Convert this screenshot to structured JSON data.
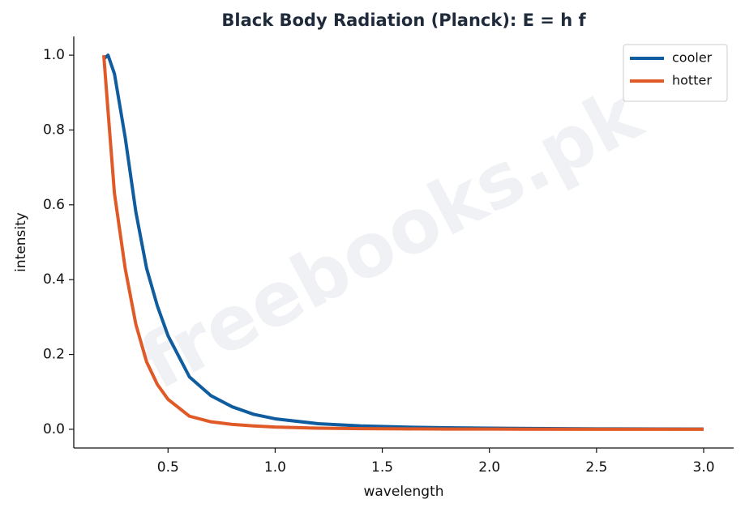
{
  "chart_data": {
    "type": "line",
    "title": "Black Body Radiation (Planck):  E = h f",
    "x_label": "wavelength",
    "y_label": "intensity",
    "watermark": "freebooks.pk",
    "x": [
      0.2,
      0.22,
      0.25,
      0.3,
      0.35,
      0.4,
      0.45,
      0.5,
      0.6,
      0.7,
      0.8,
      0.9,
      1.0,
      1.2,
      1.4,
      1.6,
      1.8,
      2.0,
      2.5,
      3.0
    ],
    "series": [
      {
        "name": "cooler",
        "color": "#0f5c9e",
        "values": [
          0.99,
          1.0,
          0.95,
          0.78,
          0.58,
          0.43,
          0.33,
          0.25,
          0.14,
          0.09,
          0.06,
          0.04,
          0.028,
          0.015,
          0.009,
          0.006,
          0.004,
          0.003,
          0.0012,
          0.0006
        ]
      },
      {
        "name": "hotter",
        "color": "#e05a28",
        "values": [
          1.0,
          0.85,
          0.63,
          0.43,
          0.28,
          0.18,
          0.12,
          0.08,
          0.035,
          0.02,
          0.013,
          0.009,
          0.006,
          0.003,
          0.0018,
          0.0011,
          0.0007,
          0.0005,
          0.0002,
          0.0001
        ]
      }
    ],
    "xlim": [
      0.06,
      3.14
    ],
    "ylim": [
      -0.05,
      1.05
    ],
    "xticks": [
      {
        "value": 0.5,
        "label": "0.5"
      },
      {
        "value": 1,
        "label": "1.0"
      },
      {
        "value": 1.5,
        "label": "1.5"
      },
      {
        "value": 2,
        "label": "2.0"
      },
      {
        "value": 2.5,
        "label": "2.5"
      },
      {
        "value": 3,
        "label": "3.0"
      }
    ],
    "yticks": [
      {
        "value": 0,
        "label": "0.0"
      },
      {
        "value": 0.2,
        "label": "0.2"
      },
      {
        "value": 0.4,
        "label": "0.4"
      },
      {
        "value": 0.6,
        "label": "0.6"
      },
      {
        "value": 0.8,
        "label": "0.8"
      },
      {
        "value": 1,
        "label": "1.0"
      }
    ],
    "legend": "upper right",
    "grid": false
  }
}
